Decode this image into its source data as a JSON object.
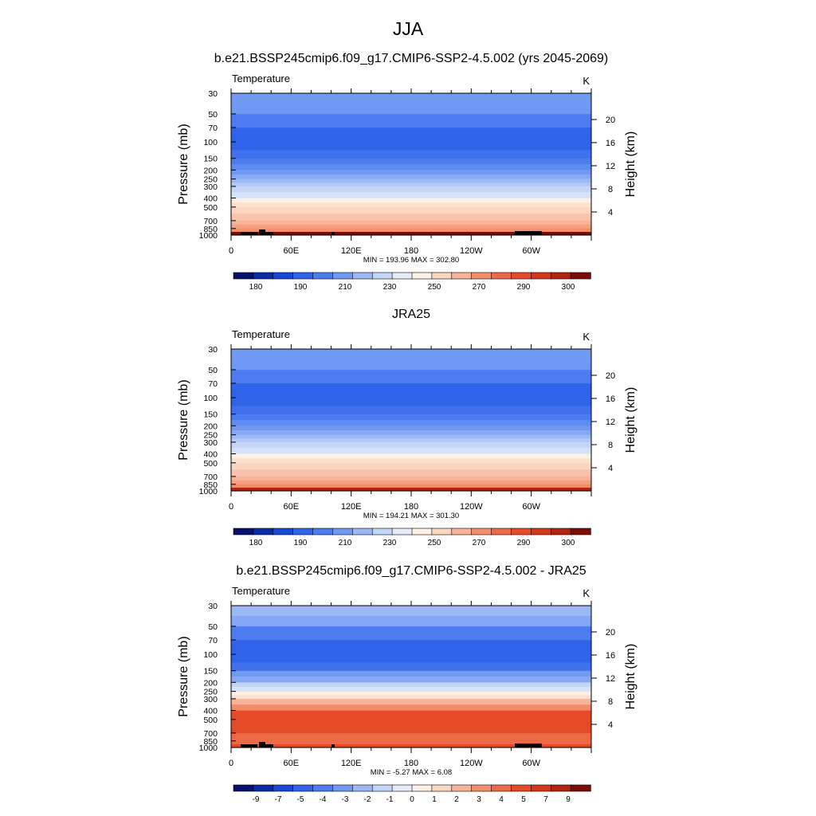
{
  "page_title": "JJA",
  "colors": {
    "palette": [
      "#08106b",
      "#0a2aa6",
      "#1747d6",
      "#2f63ea",
      "#4d7cf0",
      "#7099f2",
      "#9cb8f5",
      "#c4d6f8",
      "#e4ecfb",
      "#fdf0e4",
      "#fbd6c1",
      "#f8b398",
      "#f38e6c",
      "#ec6a47",
      "#e44b26",
      "#d4381a",
      "#b02410",
      "#7a0c06"
    ],
    "land": "#000000"
  },
  "chart_data": [
    {
      "type": "heatmap",
      "title": "b.e21.BSSP245cmip6.f09_g17.CMIP6-SSP2-4.5.002 (yrs 2045-2069)",
      "variable": "Temperature",
      "units": "K",
      "ylabel": "Pressure (mb)",
      "ylabel_right": "Height (km)",
      "pressure_ticks": [
        "30",
        "50",
        "70",
        "100",
        "150",
        "200",
        "250",
        "300",
        "400",
        "500",
        "700",
        "850",
        "1000"
      ],
      "height_ticks": [
        "20",
        "16",
        "12",
        "8",
        "4"
      ],
      "lon_ticks": [
        "0",
        "60E",
        "120E",
        "180",
        "120W",
        "60W"
      ],
      "stats": "MIN = 193.96  MAX = 302.80",
      "colorbar_labels": [
        "180",
        "190",
        "210",
        "230",
        "250",
        "270",
        "290",
        "300"
      ],
      "level_colors": [
        5,
        4,
        3,
        3,
        4,
        5,
        6,
        7,
        9,
        10,
        11,
        12,
        13,
        14,
        15,
        16
      ],
      "land": true
    },
    {
      "type": "heatmap",
      "title": "JRA25",
      "variable": "Temperature",
      "units": "K",
      "ylabel": "Pressure (mb)",
      "ylabel_right": "Height (km)",
      "pressure_ticks": [
        "30",
        "50",
        "70",
        "100",
        "150",
        "200",
        "250",
        "300",
        "400",
        "500",
        "700",
        "850",
        "1000"
      ],
      "height_ticks": [
        "20",
        "16",
        "12",
        "8",
        "4"
      ],
      "lon_ticks": [
        "0",
        "60E",
        "120E",
        "180",
        "120W",
        "60W"
      ],
      "stats": "MIN = 194.21  MAX = 301.30",
      "colorbar_labels": [
        "180",
        "190",
        "210",
        "230",
        "250",
        "270",
        "290",
        "300"
      ],
      "level_colors": [
        5,
        4,
        3,
        3,
        4,
        5,
        6,
        7,
        9,
        10,
        11,
        12,
        13,
        14,
        15,
        15
      ],
      "land": false
    },
    {
      "type": "heatmap",
      "title": "b.e21.BSSP245cmip6.f09_g17.CMIP6-SSP2-4.5.002 - JRA25",
      "variable": "Temperature",
      "units": "K",
      "ylabel": "Pressure (mb)",
      "ylabel_right": "Height (km)",
      "pressure_ticks": [
        "30",
        "50",
        "70",
        "100",
        "150",
        "200",
        "250",
        "300",
        "400",
        "500",
        "700",
        "850",
        "1000"
      ],
      "height_ticks": [
        "20",
        "16",
        "12",
        "8",
        "4"
      ],
      "lon_ticks": [
        "0",
        "60E",
        "120E",
        "180",
        "120W",
        "60W"
      ],
      "stats": "MIN = -5.27  MAX =  6.08",
      "colorbar_labels": [
        "-9",
        "-7",
        "-5",
        "-4",
        "-3",
        "-2",
        "-1",
        "0",
        "1",
        "2",
        "3",
        "4",
        "5",
        "7",
        "9"
      ],
      "level_colors": [
        6,
        4,
        3,
        3,
        5,
        7,
        9,
        11,
        14,
        14,
        13,
        13,
        13,
        12,
        11,
        13
      ],
      "land": true
    }
  ]
}
